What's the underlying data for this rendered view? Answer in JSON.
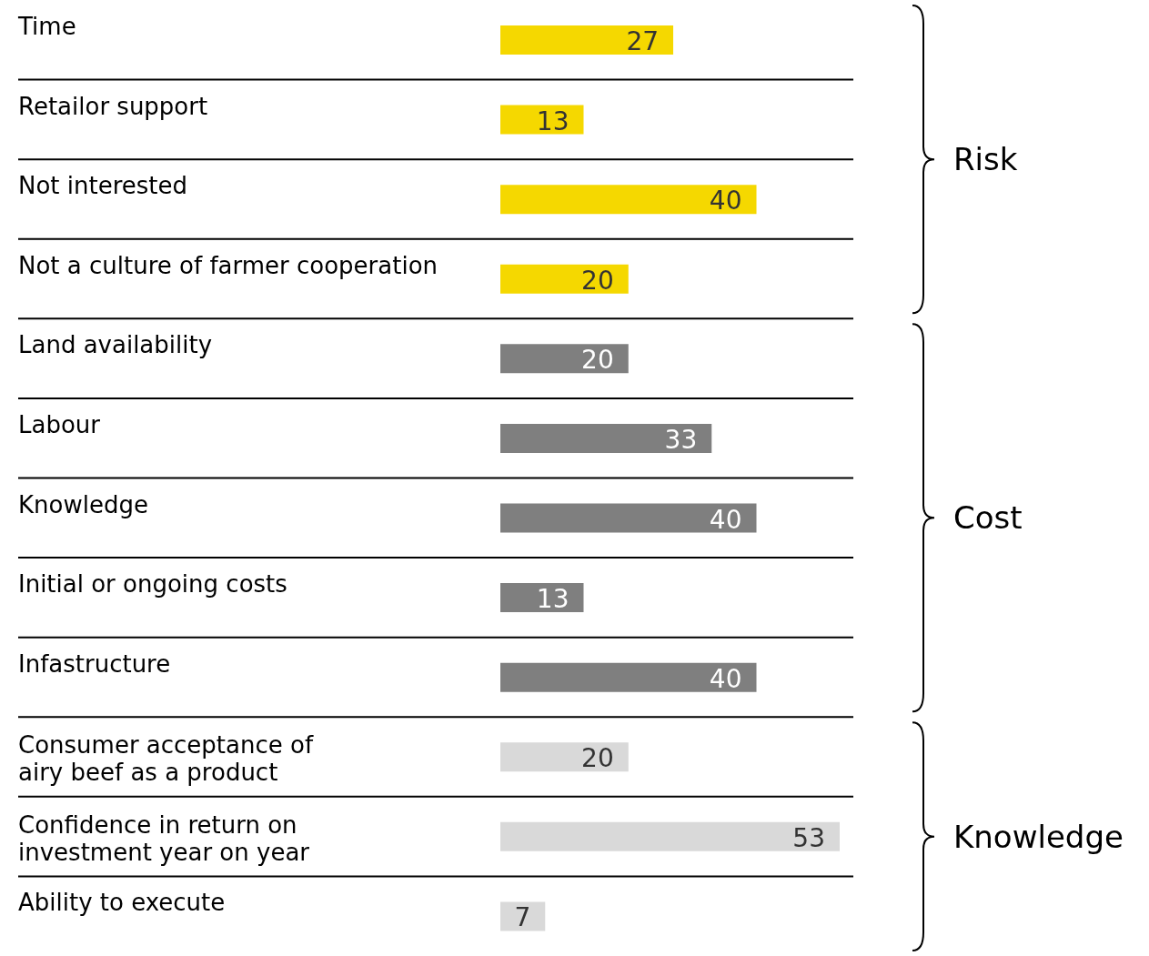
{
  "chart_data": {
    "type": "bar",
    "orientation": "horizontal",
    "categories": [
      "Time",
      "Retailor support",
      "Not interested",
      "Not a culture of farmer cooperation",
      "Land availability",
      "Labour",
      "Knowledge",
      "Initial or ongoing costs",
      "Infastructure",
      "Consumer acceptance of\nairy beef as a product",
      "Confidence in return on\ninvestment year on year",
      "Ability to execute"
    ],
    "values": [
      27,
      13,
      40,
      20,
      20,
      33,
      40,
      13,
      40,
      20,
      53,
      7
    ],
    "colors": [
      "#f5d800",
      "#f5d800",
      "#f5d800",
      "#f5d800",
      "#7f7f7f",
      "#7f7f7f",
      "#7f7f7f",
      "#7f7f7f",
      "#7f7f7f",
      "#d9d9d9",
      "#d9d9d9",
      "#d9d9d9"
    ],
    "data_labels": true,
    "annotations": [
      "Risk",
      "Cost",
      "Knowledge"
    ]
  }
}
